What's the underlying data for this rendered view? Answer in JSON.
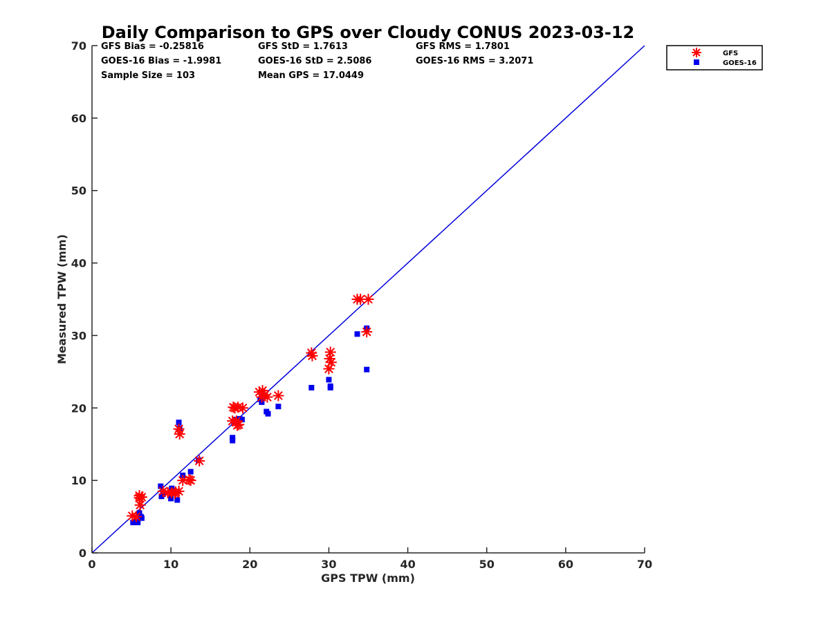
{
  "chart_data": {
    "type": "scatter",
    "title": "Daily Comparison to GPS over Cloudy CONUS 2023-03-12",
    "xlabel": "GPS TPW (mm)",
    "ylabel": "Measured TPW (mm)",
    "xlim": [
      0,
      70
    ],
    "ylim": [
      0,
      70
    ],
    "xticks": [
      "0",
      "10",
      "20",
      "30",
      "40",
      "50",
      "60",
      "70"
    ],
    "yticks": [
      "0",
      "10",
      "20",
      "30",
      "40",
      "50",
      "60",
      "70"
    ],
    "grid": false,
    "legend_position": "outside-top-right",
    "reference_line": {
      "x": [
        0,
        70
      ],
      "y": [
        0,
        70
      ],
      "color": "#0000dd"
    },
    "stats": [
      "GFS Bias = -0.25816",
      "GFS StD = 1.7613",
      "GFS RMS = 1.7801",
      "GOES-16 Bias = -1.9981",
      "GOES-16 StD = 2.5086",
      "GOES-16 RMS = 3.2071",
      "Sample Size = 103",
      "Mean GPS = 17.0449"
    ],
    "series": [
      {
        "name": "GFS",
        "marker": "asterisk",
        "color": "#ff0000",
        "points": [
          [
            5.1,
            5.1
          ],
          [
            5.6,
            5.0
          ],
          [
            6.0,
            7.6
          ],
          [
            6.1,
            6.6
          ],
          [
            6.3,
            7.7
          ],
          [
            6.0,
            7.9
          ],
          [
            9.0,
            8.5
          ],
          [
            9.6,
            8.3
          ],
          [
            10.1,
            8.3
          ],
          [
            10.6,
            8.4
          ],
          [
            11.0,
            8.5
          ],
          [
            10.5,
            8.2
          ],
          [
            11.0,
            17.1
          ],
          [
            11.1,
            16.4
          ],
          [
            11.5,
            10.0
          ],
          [
            12.3,
            10.1
          ],
          [
            12.5,
            10.0
          ],
          [
            13.6,
            12.7
          ],
          [
            17.8,
            18.2
          ],
          [
            17.9,
            20.1
          ],
          [
            18.1,
            20.0
          ],
          [
            18.4,
            17.6
          ],
          [
            18.5,
            20.1
          ],
          [
            18.6,
            17.7
          ],
          [
            19.1,
            20.0
          ],
          [
            18.3,
            18.2
          ],
          [
            21.2,
            22.2
          ],
          [
            21.5,
            21.5
          ],
          [
            21.6,
            22.4
          ],
          [
            21.9,
            21.8
          ],
          [
            22.2,
            21.5
          ],
          [
            23.6,
            21.7
          ],
          [
            27.8,
            27.6
          ],
          [
            27.9,
            27.2
          ],
          [
            30.0,
            25.4
          ],
          [
            30.1,
            26.8
          ],
          [
            30.2,
            27.7
          ],
          [
            30.3,
            26.3
          ],
          [
            33.6,
            35.0
          ],
          [
            34.0,
            35.0
          ],
          [
            34.8,
            30.5
          ],
          [
            35.0,
            35.0
          ]
        ]
      },
      {
        "name": "GOES-16",
        "marker": "square",
        "color": "#0000ee",
        "points": [
          [
            5.2,
            4.2
          ],
          [
            5.6,
            4.3
          ],
          [
            5.8,
            4.2
          ],
          [
            6.0,
            5.5
          ],
          [
            6.2,
            5.0
          ],
          [
            6.3,
            4.8
          ],
          [
            8.7,
            9.2
          ],
          [
            8.8,
            7.8
          ],
          [
            9.0,
            8.1
          ],
          [
            10.0,
            7.5
          ],
          [
            10.1,
            8.9
          ],
          [
            10.8,
            7.3
          ],
          [
            11.0,
            18.0
          ],
          [
            11.1,
            17.2
          ],
          [
            11.5,
            10.7
          ],
          [
            12.5,
            11.2
          ],
          [
            13.5,
            12.8
          ],
          [
            17.8,
            15.5
          ],
          [
            17.8,
            15.9
          ],
          [
            18.0,
            18.1
          ],
          [
            18.3,
            18.4
          ],
          [
            18.7,
            18.5
          ],
          [
            19.0,
            18.4
          ],
          [
            21.3,
            21.2
          ],
          [
            21.5,
            20.8
          ],
          [
            21.7,
            21.6
          ],
          [
            22.1,
            19.5
          ],
          [
            22.3,
            19.2
          ],
          [
            23.6,
            20.2
          ],
          [
            27.8,
            22.8
          ],
          [
            30.0,
            23.9
          ],
          [
            30.2,
            22.8
          ],
          [
            30.2,
            23.0
          ],
          [
            33.6,
            30.2
          ],
          [
            34.8,
            31.0
          ],
          [
            34.8,
            25.3
          ]
        ]
      }
    ]
  }
}
